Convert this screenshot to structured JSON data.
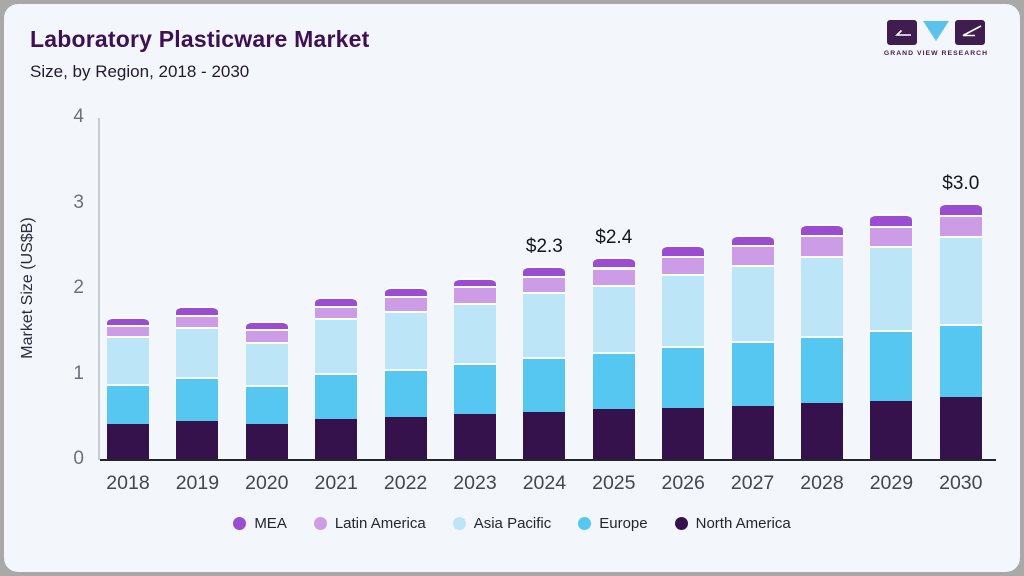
{
  "header": {
    "title": "Laboratory Plasticware Market",
    "subtitle": "Size, by Region, 2018 - 2030"
  },
  "logo": {
    "brand": "GRAND VIEW RESEARCH"
  },
  "colors": {
    "card_background": "#f3f6fa",
    "title": "#3d1152",
    "brand_purple": "#3f1d4e",
    "brand_blue": "#5bc3ea",
    "axis_line": "#c5ccd3",
    "baseline": "#24242c"
  },
  "chart_data": {
    "type": "bar",
    "stacked": true,
    "title": "Laboratory Plasticware Market Size, by Region, 2018 - 2030",
    "xlabel": "",
    "ylabel": "Market Size (US$B)",
    "ylim": [
      0,
      4
    ],
    "yticks": [
      "0",
      "1",
      "2",
      "3",
      "4"
    ],
    "grid": false,
    "legend_position": "bottom",
    "categories": [
      "2018",
      "2019",
      "2020",
      "2021",
      "2022",
      "2023",
      "2024",
      "2025",
      "2026",
      "2027",
      "2028",
      "2029",
      "2030"
    ],
    "series": [
      {
        "name": "North America",
        "color": "#35124b",
        "values": [
          0.41,
          0.45,
          0.41,
          0.47,
          0.49,
          0.53,
          0.55,
          0.58,
          0.6,
          0.62,
          0.66,
          0.68,
          0.72
        ]
      },
      {
        "name": "Europe",
        "color": "#56c7f1",
        "values": [
          0.47,
          0.51,
          0.45,
          0.54,
          0.56,
          0.59,
          0.64,
          0.67,
          0.72,
          0.76,
          0.78,
          0.83,
          0.86
        ]
      },
      {
        "name": "Asia Pacific",
        "color": "#bce5f8",
        "values": [
          0.56,
          0.58,
          0.51,
          0.64,
          0.68,
          0.7,
          0.76,
          0.79,
          0.84,
          0.89,
          0.94,
          0.98,
          1.03
        ]
      },
      {
        "name": "Latin America",
        "color": "#cc9ce7",
        "values": [
          0.13,
          0.15,
          0.15,
          0.14,
          0.18,
          0.2,
          0.19,
          0.2,
          0.22,
          0.23,
          0.24,
          0.24,
          0.24
        ]
      },
      {
        "name": "MEA",
        "color": "#9b4cd1",
        "values": [
          0.09,
          0.1,
          0.09,
          0.1,
          0.1,
          0.1,
          0.12,
          0.12,
          0.12,
          0.12,
          0.13,
          0.14,
          0.15
        ]
      }
    ],
    "legend_order": [
      "MEA",
      "Latin America",
      "Asia Pacific",
      "Europe",
      "North America"
    ],
    "annotations": {
      "2024": "$2.3",
      "2025": "$2.4",
      "2030": "$3.0"
    }
  }
}
